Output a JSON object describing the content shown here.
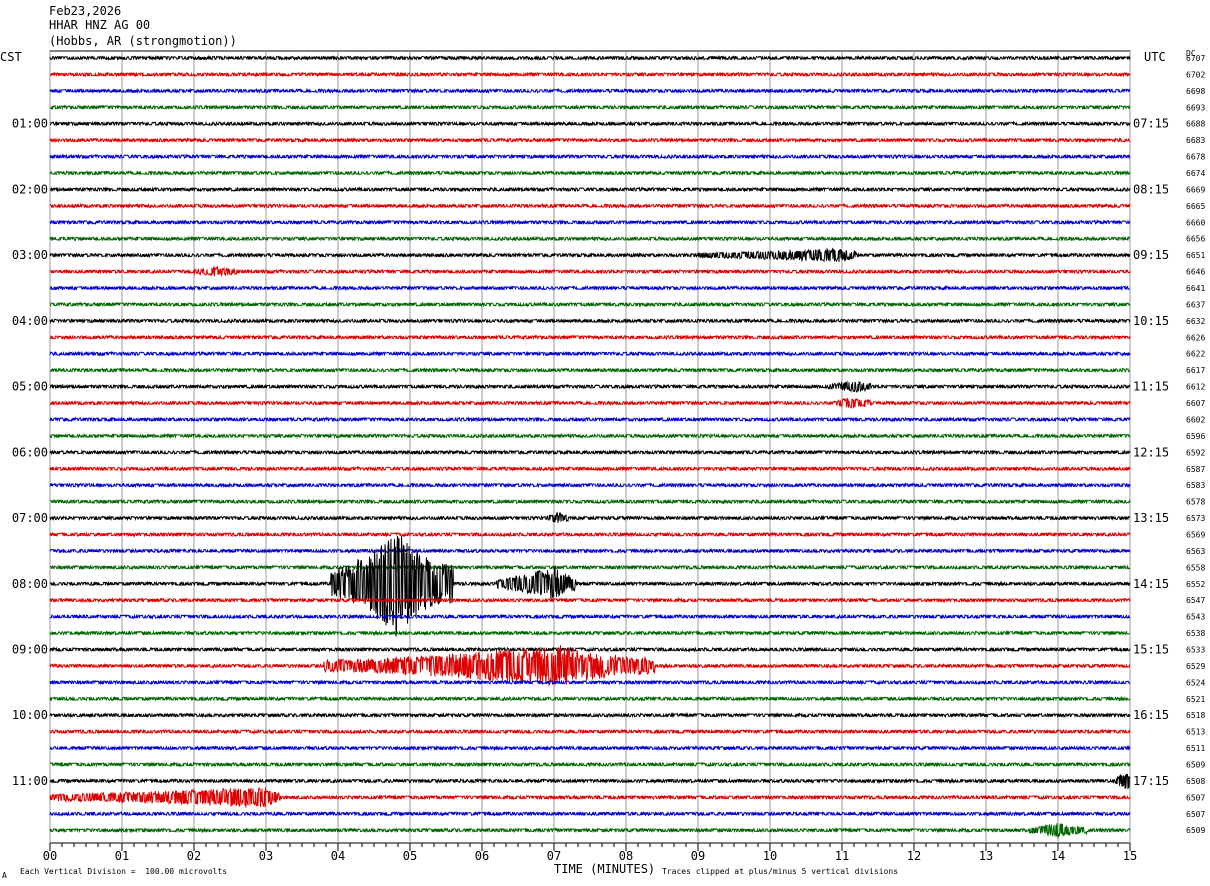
{
  "header": {
    "date": "Feb23,2026",
    "station": "HHAR HNZ AG 00",
    "location": "(Hobbs, AR (strongmotion))"
  },
  "left_tz": "CST",
  "right_tz": "UTC",
  "dc_header": "DC",
  "footer": {
    "scale_note": "Each Vertical Division =  100.00 microvolts",
    "xlabel": "TIME (MINUTES)",
    "clip_note": "Traces clipped at plus/minus 5 vertical divisions",
    "mark": "A"
  },
  "chart_data": {
    "type": "line",
    "title": "HHAR HNZ AG 00",
    "xlabel": "TIME (MINUTES)",
    "xlim": [
      0,
      15
    ],
    "x_ticks": [
      "00",
      "01",
      "02",
      "03",
      "04",
      "05",
      "06",
      "07",
      "08",
      "09",
      "10",
      "11",
      "12",
      "13",
      "14",
      "15"
    ],
    "trace_colors": [
      "#000000",
      "#dd0000",
      "#0000cc",
      "#006600"
    ],
    "left_hour_labels": [
      "01:00",
      "02:00",
      "03:00",
      "04:00",
      "05:00",
      "06:00",
      "07:00",
      "08:00",
      "09:00",
      "10:00",
      "11:00"
    ],
    "right_hour_labels": [
      "07:15",
      "08:15",
      "09:15",
      "10:15",
      "11:15",
      "12:15",
      "13:15",
      "14:15",
      "15:15",
      "16:15",
      "17:15"
    ],
    "dc_offsets": [
      "6707",
      "6702",
      "6698",
      "6693",
      "6688",
      "6683",
      "6678",
      "6674",
      "6669",
      "6665",
      "6660",
      "6656",
      "6651",
      "6646",
      "6641",
      "6637",
      "6632",
      "6626",
      "6622",
      "6617",
      "6612",
      "6607",
      "6602",
      "6596",
      "6592",
      "6587",
      "6583",
      "6578",
      "6573",
      "6569",
      "6563",
      "6558",
      "6552",
      "6547",
      "6543",
      "6538",
      "6533",
      "6529",
      "6524",
      "6521",
      "6518",
      "6513",
      "6511",
      "6509",
      "6508",
      "6507",
      "6507",
      "6509"
    ],
    "events": [
      {
        "trace": 12,
        "start_min": 9.0,
        "end_min": 11.2,
        "peak_min": 11.0,
        "amplitude": 0.35
      },
      {
        "trace": 13,
        "start_min": 2.0,
        "end_min": 2.6,
        "peak_min": 2.3,
        "amplitude": 0.25
      },
      {
        "trace": 20,
        "start_min": 10.8,
        "end_min": 11.4,
        "peak_min": 11.2,
        "amplitude": 0.3
      },
      {
        "trace": 21,
        "start_min": 10.9,
        "end_min": 11.4,
        "peak_min": 11.1,
        "amplitude": 0.3
      },
      {
        "trace": 28,
        "start_min": 6.9,
        "end_min": 7.2,
        "peak_min": 7.05,
        "amplitude": 0.3
      },
      {
        "trace": 32,
        "start_min": 3.9,
        "end_min": 5.6,
        "peak_min": 4.82,
        "amplitude": 3.2
      },
      {
        "trace": 32,
        "start_min": 6.2,
        "end_min": 7.3,
        "peak_min": 7.0,
        "amplitude": 1.0
      },
      {
        "trace": 37,
        "start_min": 3.8,
        "end_min": 8.4,
        "peak_min": 7.1,
        "amplitude": 1.2
      },
      {
        "trace": 45,
        "start_min": 0.0,
        "end_min": 3.2,
        "peak_min": 3.0,
        "amplitude": 0.6
      },
      {
        "trace": 44,
        "start_min": 14.8,
        "end_min": 15.0,
        "peak_min": 14.95,
        "amplitude": 0.6
      },
      {
        "trace": 47,
        "start_min": 13.6,
        "end_min": 14.4,
        "peak_min": 14.0,
        "amplitude": 0.4
      }
    ]
  }
}
